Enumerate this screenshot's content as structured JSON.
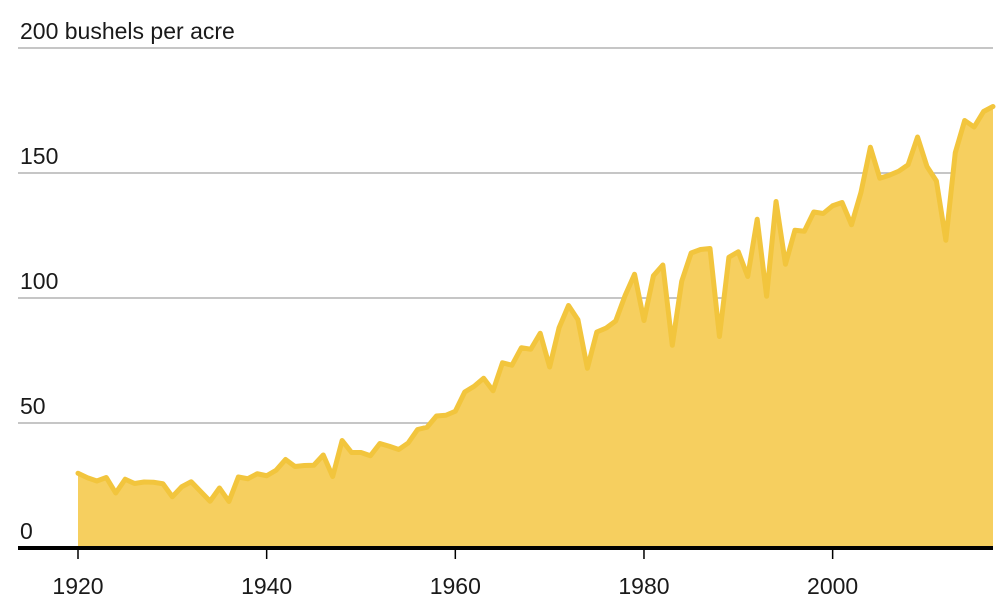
{
  "chart_data": {
    "type": "area",
    "title": "",
    "xlabel": "",
    "ylabel": "",
    "x_ticks": [
      "1920",
      "1940",
      "1960",
      "1980",
      "2000"
    ],
    "y_ticks": [
      {
        "value": 0,
        "label": "0"
      },
      {
        "value": 50,
        "label": "50"
      },
      {
        "value": 100,
        "label": "100"
      },
      {
        "value": 150,
        "label": "150"
      },
      {
        "value": 200,
        "label": "200 bushels per acre"
      }
    ],
    "xlim": [
      1920,
      2017
    ],
    "ylim": [
      0,
      200
    ],
    "grid": true,
    "colors": {
      "fill": "#f6cf5f",
      "line": "#f2c53d"
    },
    "series": [
      {
        "x": [
          1920,
          1921,
          1922,
          1923,
          1924,
          1925,
          1926,
          1927,
          1928,
          1929,
          1930,
          1931,
          1932,
          1933,
          1934,
          1935,
          1936,
          1937,
          1938,
          1939,
          1940,
          1941,
          1942,
          1943,
          1944,
          1945,
          1946,
          1947,
          1948,
          1949,
          1950,
          1951,
          1952,
          1953,
          1954,
          1955,
          1956,
          1957,
          1958,
          1959,
          1960,
          1961,
          1962,
          1963,
          1964,
          1965,
          1966,
          1967,
          1968,
          1969,
          1970,
          1971,
          1972,
          1973,
          1974,
          1975,
          1976,
          1977,
          1978,
          1979,
          1980,
          1981,
          1982,
          1983,
          1984,
          1985,
          1986,
          1987,
          1988,
          1989,
          1990,
          1991,
          1992,
          1993,
          1994,
          1995,
          1996,
          1997,
          1998,
          1999,
          2000,
          2001,
          2002,
          2003,
          2004,
          2005,
          2006,
          2007,
          2008,
          2009,
          2010,
          2011,
          2012,
          2013,
          2014,
          2015,
          2016,
          2017
        ],
        "values": [
          29.9,
          28.1,
          26.8,
          28.2,
          22.0,
          27.5,
          25.8,
          26.4,
          26.3,
          25.7,
          20.5,
          24.5,
          26.5,
          22.6,
          18.7,
          24.0,
          18.6,
          28.4,
          27.7,
          29.7,
          28.9,
          31.1,
          35.4,
          32.6,
          33.0,
          33.1,
          37.2,
          28.6,
          43.0,
          38.2,
          38.2,
          36.9,
          41.8,
          40.7,
          39.4,
          42.0,
          47.4,
          48.3,
          52.8,
          53.1,
          54.7,
          62.4,
          64.7,
          67.9,
          62.9,
          74.1,
          73.1,
          80.1,
          79.5,
          85.9,
          72.4,
          88.1,
          97.0,
          91.3,
          71.9,
          86.4,
          88.0,
          90.8,
          101.0,
          109.5,
          91.0,
          108.9,
          113.2,
          81.1,
          106.7,
          118.0,
          119.4,
          119.8,
          84.6,
          116.3,
          118.5,
          108.6,
          131.5,
          100.7,
          138.6,
          113.5,
          127.1,
          126.7,
          134.4,
          133.8,
          136.9,
          138.2,
          129.3,
          142.2,
          160.3,
          147.9,
          149.1,
          150.7,
          153.3,
          164.4,
          152.6,
          146.8,
          123.1,
          158.1,
          171.0,
          168.4,
          174.6,
          176.6
        ]
      }
    ]
  }
}
